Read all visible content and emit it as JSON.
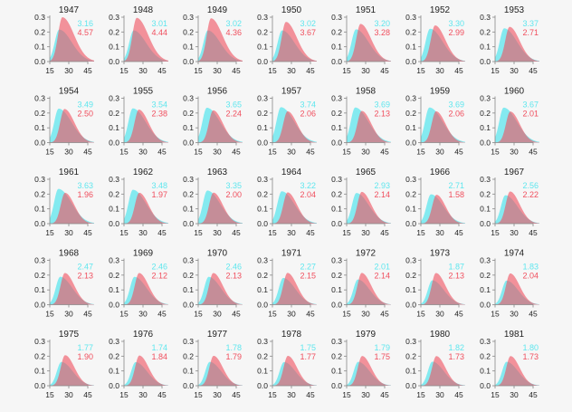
{
  "colors": {
    "series_a": "#5ee6ee",
    "series_b": "#f04f5e",
    "axis": "#888888",
    "text": "#222222",
    "background": "#f6f6f6"
  },
  "chart_data": {
    "type": "area",
    "layout": "small-multiples",
    "grid": false,
    "x_ticks": [
      "15",
      "30",
      "45"
    ],
    "y_ticks": [
      "0.0",
      "0.1",
      "0.2",
      "0.3"
    ],
    "xlim": [
      15,
      45
    ],
    "ylim": [
      0,
      0.3
    ],
    "panels": [
      {
        "year": "1947",
        "a": "3.16",
        "b": "4.57"
      },
      {
        "year": "1948",
        "a": "3.01",
        "b": "4.44"
      },
      {
        "year": "1949",
        "a": "3.02",
        "b": "4.36"
      },
      {
        "year": "1950",
        "a": "3.02",
        "b": "3.67"
      },
      {
        "year": "1951",
        "a": "3.20",
        "b": "3.28"
      },
      {
        "year": "1952",
        "a": "3.30",
        "b": "2.99"
      },
      {
        "year": "1953",
        "a": "3.37",
        "b": "2.71"
      },
      {
        "year": "1954",
        "a": "3.49",
        "b": "2.50"
      },
      {
        "year": "1955",
        "a": "3.54",
        "b": "2.38"
      },
      {
        "year": "1956",
        "a": "3.65",
        "b": "2.24"
      },
      {
        "year": "1957",
        "a": "3.74",
        "b": "2.06"
      },
      {
        "year": "1958",
        "a": "3.69",
        "b": "2.13"
      },
      {
        "year": "1959",
        "a": "3.69",
        "b": "2.06"
      },
      {
        "year": "1960",
        "a": "3.67",
        "b": "2.01"
      },
      {
        "year": "1961",
        "a": "3.63",
        "b": "1.96"
      },
      {
        "year": "1962",
        "a": "3.48",
        "b": "1.97"
      },
      {
        "year": "1963",
        "a": "3.35",
        "b": "2.00"
      },
      {
        "year": "1964",
        "a": "3.22",
        "b": "2.04"
      },
      {
        "year": "1965",
        "a": "2.93",
        "b": "2.14"
      },
      {
        "year": "1966",
        "a": "2.71",
        "b": "1.58"
      },
      {
        "year": "1967",
        "a": "2.56",
        "b": "2.22"
      },
      {
        "year": "1968",
        "a": "2.47",
        "b": "2.13"
      },
      {
        "year": "1969",
        "a": "2.46",
        "b": "2.12"
      },
      {
        "year": "1970",
        "a": "2.46",
        "b": "2.13"
      },
      {
        "year": "1971",
        "a": "2.27",
        "b": "2.15"
      },
      {
        "year": "1972",
        "a": "2.01",
        "b": "2.14"
      },
      {
        "year": "1973",
        "a": "1.87",
        "b": "2.13"
      },
      {
        "year": "1974",
        "a": "1.83",
        "b": "2.04"
      },
      {
        "year": "1975",
        "a": "1.77",
        "b": "1.90"
      },
      {
        "year": "1976",
        "a": "1.74",
        "b": "1.84"
      },
      {
        "year": "1977",
        "a": "1.78",
        "b": "1.79"
      },
      {
        "year": "1978",
        "a": "1.75",
        "b": "1.77"
      },
      {
        "year": "1979",
        "a": "1.79",
        "b": "1.75"
      },
      {
        "year": "1980",
        "a": "1.82",
        "b": "1.73"
      },
      {
        "year": "1981",
        "a": "1.80",
        "b": "1.73"
      }
    ]
  }
}
